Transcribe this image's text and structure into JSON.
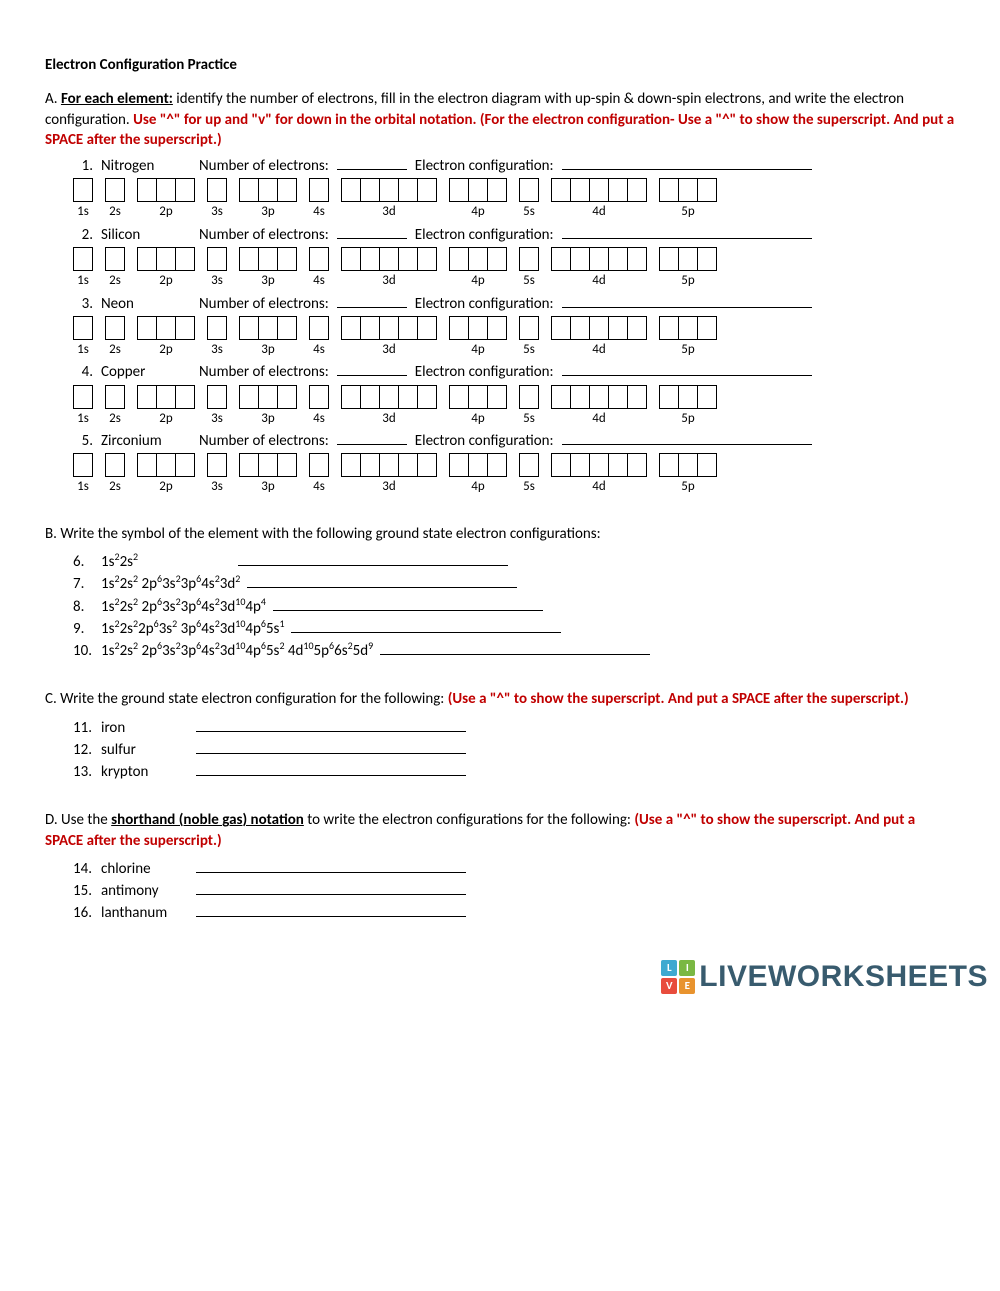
{
  "title": "Electron Configuration Practice",
  "sectionA": {
    "prefix": "A. ",
    "lead_bold": "For each element:",
    "lead_rest": " identify the number of electrons, fill in the electron diagram with up-spin & down-spin electrons, and write the electron configuration.  ",
    "red_text": "Use \"^\" for up and \"v\" for down in the orbital notation. (For the electron configuration- Use a \"^\" to show the superscript. And put a SPACE after the superscript.)"
  },
  "prompt_electrons": "Number of electrons:",
  "prompt_config": "Electron configuration:",
  "elements": [
    {
      "n": "1.",
      "name": "Nitrogen"
    },
    {
      "n": "2.",
      "name": "Silicon"
    },
    {
      "n": "3.",
      "name": "Neon"
    },
    {
      "n": "4.",
      "name": "Copper"
    },
    {
      "n": "5.",
      "name": "Zirconium"
    }
  ],
  "orbitals": [
    {
      "label": "1s",
      "boxes": 1
    },
    {
      "label": "2s",
      "boxes": 1
    },
    {
      "label": "2p",
      "boxes": 3
    },
    {
      "label": "3s",
      "boxes": 1
    },
    {
      "label": "3p",
      "boxes": 3
    },
    {
      "label": "4s",
      "boxes": 1
    },
    {
      "label": "3d",
      "boxes": 5
    },
    {
      "label": "4p",
      "boxes": 3
    },
    {
      "label": "5s",
      "boxes": 1
    },
    {
      "label": "4d",
      "boxes": 5
    },
    {
      "label": "5p",
      "boxes": 3
    }
  ],
  "sectionB": {
    "heading": "B. Write the symbol of the element with the following ground state electron configurations:",
    "items": [
      {
        "n": "6.",
        "html": "1s<sup>2</sup>2s<sup>2</sup>"
      },
      {
        "n": "7.",
        "html": "1s<sup>2</sup>2s<sup>2</sup> 2p<sup>6</sup>3s<sup>2</sup>3p<sup>6</sup>4s<sup>2</sup>3d<sup>2</sup>"
      },
      {
        "n": "8.",
        "html": "1s<sup>2</sup>2s<sup>2</sup> 2p<sup>6</sup>3s<sup>2</sup>3p<sup>6</sup>4s<sup>2</sup>3d<sup>10</sup>4p<sup>4</sup>"
      },
      {
        "n": "9.",
        "html": "1s<sup>2</sup>2s<sup>2</sup>2p<sup>6</sup>3s<sup>2</sup> 3p<sup>6</sup>4s<sup>2</sup>3d<sup>10</sup>4p<sup>6</sup>5s<sup>1</sup>"
      },
      {
        "n": "10.",
        "html": "1s<sup>2</sup>2s<sup>2</sup> 2p<sup>6</sup>3s<sup>2</sup>3p<sup>6</sup>4s<sup>2</sup>3d<sup>10</sup>4p<sup>6</sup>5s<sup>2</sup> 4d<sup>10</sup>5p<sup>6</sup>6s<sup>2</sup>5d<sup>9</sup>"
      }
    ]
  },
  "sectionC": {
    "heading_black": "C. Write the ground state electron configuration for the following: ",
    "heading_red": "(Use a \"^\" to show the superscript. And put a SPACE after the superscript.)",
    "items": [
      {
        "n": "11.",
        "name": "iron"
      },
      {
        "n": "12.",
        "name": "sulfur"
      },
      {
        "n": "13.",
        "name": "krypton"
      }
    ]
  },
  "sectionD": {
    "heading_pre": "D. Use the ",
    "heading_bold": "shorthand (noble gas) notation",
    "heading_post": " to write the electron configurations for the following: ",
    "heading_red": "(Use a \"^\" to show the superscript. And put a SPACE after the superscript.)",
    "items": [
      {
        "n": "14.",
        "name": "chlorine"
      },
      {
        "n": "15.",
        "name": "antimony"
      },
      {
        "n": "16.",
        "name": "lanthanum"
      }
    ]
  },
  "footer": {
    "brand": "LIVEWORKSHEETS",
    "squares": [
      {
        "t": "L",
        "c": "#3fa9d0"
      },
      {
        "t": "I",
        "c": "#7ab843"
      },
      {
        "t": "V",
        "c": "#e84c3d"
      },
      {
        "t": "E",
        "c": "#e8932e"
      }
    ]
  },
  "colors": {
    "text": "#000000",
    "red": "#c00000",
    "brand": "#385b6e",
    "background": "#ffffff"
  }
}
